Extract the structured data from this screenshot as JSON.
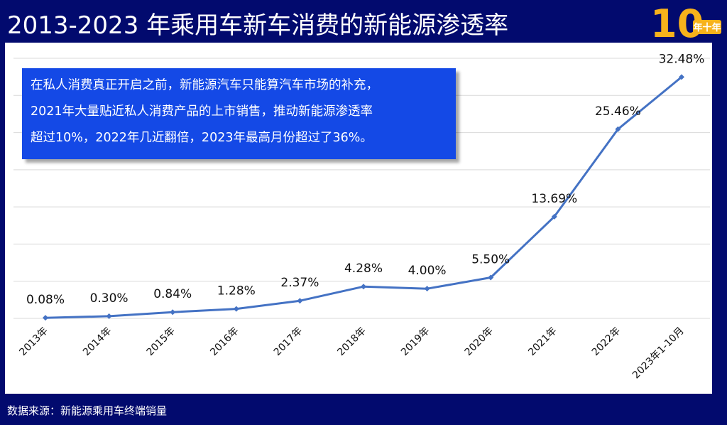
{
  "header": {
    "title": "2013-2023 年乘用车新车消费的新能源渗透率",
    "logo_big": "10",
    "logo_small": "年十年",
    "logo_color": "#f7b21b"
  },
  "annotation": {
    "text": "在私人消费真正开启之前，新能源汽车只能算汽车市场的补充，\n2021年大量贴近私人消费产品的上市销售，推动新能源渗透率\n超过10%，2022年几近翻倍，2023年最高月份超过了36%。",
    "background": "#1449e6"
  },
  "footer": {
    "source": "数据来源：新能源乘用车终端销量"
  },
  "colors": {
    "page_bg": "#020a6e",
    "line": "#4472c4",
    "grid": "#d9d9d9"
  },
  "chart_data": {
    "type": "line",
    "categories": [
      "2013年",
      "2014年",
      "2015年",
      "2016年",
      "2017年",
      "2018年",
      "2019年",
      "2020年",
      "2021年",
      "2022年",
      "2023年1-10月"
    ],
    "values": [
      0.08,
      0.3,
      0.84,
      1.28,
      2.37,
      4.28,
      4.0,
      5.5,
      13.69,
      25.46,
      32.48
    ],
    "data_labels": [
      "0.08%",
      "0.30%",
      "0.84%",
      "1.28%",
      "2.37%",
      "4.28%",
      "4.00%",
      "5.50%",
      "13.69%",
      "25.46%",
      "32.48%"
    ],
    "title": "2013-2023 年乘用车新车消费的新能源渗透率",
    "xlabel": "",
    "ylabel": "",
    "ylim": [
      0,
      35
    ],
    "grid": true,
    "legend": "none",
    "y_axis_labels_shown": false
  }
}
